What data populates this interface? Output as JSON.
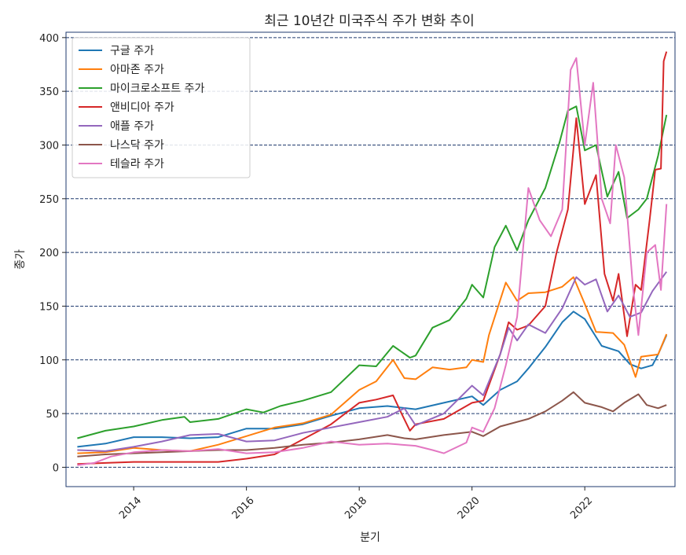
{
  "chart_data": {
    "type": "line",
    "title": "최근 10년간 미국주식 주가 변화 추이",
    "xlabel": "분기",
    "ylabel": "종가",
    "xlim": [
      2012.8,
      2023.6
    ],
    "ylim": [
      -18,
      405
    ],
    "x_ticks": [
      2014,
      2016,
      2018,
      2020,
      2022
    ],
    "x_tick_labels": [
      "2014",
      "2016",
      "2018",
      "2020",
      "2022"
    ],
    "y_ticks": [
      0,
      50,
      100,
      150,
      200,
      250,
      300,
      350,
      400
    ],
    "y_tick_labels": [
      "0",
      "50",
      "100",
      "150",
      "200",
      "250",
      "300",
      "350",
      "400"
    ],
    "grid": "horizontal dashed",
    "legend_position": "top-left",
    "series": [
      {
        "name": "구글 주가",
        "color": "#1f77b4",
        "points": [
          [
            2013.0,
            19
          ],
          [
            2013.5,
            22
          ],
          [
            2014.0,
            28
          ],
          [
            2014.5,
            28
          ],
          [
            2015.0,
            27
          ],
          [
            2015.5,
            28
          ],
          [
            2016.0,
            36
          ],
          [
            2016.5,
            36
          ],
          [
            2017.0,
            40
          ],
          [
            2017.5,
            48
          ],
          [
            2018.0,
            55
          ],
          [
            2018.5,
            57
          ],
          [
            2019.0,
            54
          ],
          [
            2019.5,
            60
          ],
          [
            2020.0,
            66
          ],
          [
            2020.2,
            58
          ],
          [
            2020.5,
            72
          ],
          [
            2020.8,
            80
          ],
          [
            2021.0,
            92
          ],
          [
            2021.3,
            112
          ],
          [
            2021.6,
            135
          ],
          [
            2021.8,
            145
          ],
          [
            2022.0,
            138
          ],
          [
            2022.3,
            113
          ],
          [
            2022.6,
            108
          ],
          [
            2022.8,
            96
          ],
          [
            2023.0,
            92
          ],
          [
            2023.2,
            95
          ],
          [
            2023.3,
            105
          ],
          [
            2023.45,
            123
          ]
        ]
      },
      {
        "name": "아마존 주가",
        "color": "#ff7f0e",
        "points": [
          [
            2013.0,
            13
          ],
          [
            2013.5,
            14
          ],
          [
            2014.0,
            18
          ],
          [
            2014.5,
            16
          ],
          [
            2015.0,
            15
          ],
          [
            2015.5,
            21
          ],
          [
            2016.0,
            29
          ],
          [
            2016.5,
            37
          ],
          [
            2017.0,
            41
          ],
          [
            2017.5,
            49
          ],
          [
            2018.0,
            72
          ],
          [
            2018.3,
            80
          ],
          [
            2018.6,
            100
          ],
          [
            2018.8,
            83
          ],
          [
            2019.0,
            82
          ],
          [
            2019.3,
            93
          ],
          [
            2019.6,
            91
          ],
          [
            2019.9,
            93
          ],
          [
            2020.0,
            100
          ],
          [
            2020.2,
            98
          ],
          [
            2020.3,
            123
          ],
          [
            2020.6,
            172
          ],
          [
            2020.8,
            155
          ],
          [
            2021.0,
            162
          ],
          [
            2021.3,
            163
          ],
          [
            2021.6,
            168
          ],
          [
            2021.8,
            177
          ],
          [
            2022.0,
            152
          ],
          [
            2022.2,
            126
          ],
          [
            2022.5,
            125
          ],
          [
            2022.7,
            114
          ],
          [
            2022.9,
            84
          ],
          [
            2023.0,
            103
          ],
          [
            2023.3,
            105
          ],
          [
            2023.45,
            124
          ]
        ]
      },
      {
        "name": "마이크로소프트 주가",
        "color": "#2ca02c",
        "points": [
          [
            2013.0,
            27
          ],
          [
            2013.5,
            34
          ],
          [
            2014.0,
            38
          ],
          [
            2014.5,
            44
          ],
          [
            2014.9,
            47
          ],
          [
            2015.0,
            42
          ],
          [
            2015.5,
            45
          ],
          [
            2016.0,
            54
          ],
          [
            2016.3,
            51
          ],
          [
            2016.6,
            57
          ],
          [
            2017.0,
            62
          ],
          [
            2017.5,
            70
          ],
          [
            2018.0,
            95
          ],
          [
            2018.3,
            94
          ],
          [
            2018.6,
            113
          ],
          [
            2018.9,
            102
          ],
          [
            2019.0,
            104
          ],
          [
            2019.3,
            130
          ],
          [
            2019.6,
            137
          ],
          [
            2019.9,
            157
          ],
          [
            2020.0,
            170
          ],
          [
            2020.2,
            158
          ],
          [
            2020.4,
            205
          ],
          [
            2020.6,
            225
          ],
          [
            2020.8,
            202
          ],
          [
            2021.0,
            230
          ],
          [
            2021.3,
            260
          ],
          [
            2021.55,
            302
          ],
          [
            2021.7,
            332
          ],
          [
            2021.85,
            336
          ],
          [
            2022.0,
            295
          ],
          [
            2022.2,
            300
          ],
          [
            2022.4,
            252
          ],
          [
            2022.6,
            275
          ],
          [
            2022.75,
            232
          ],
          [
            2022.95,
            240
          ],
          [
            2023.1,
            250
          ],
          [
            2023.3,
            290
          ],
          [
            2023.45,
            328
          ]
        ]
      },
      {
        "name": "앤비디아 주가",
        "color": "#d62728",
        "points": [
          [
            2013.0,
            3
          ],
          [
            2013.5,
            4
          ],
          [
            2014.0,
            5
          ],
          [
            2014.5,
            5
          ],
          [
            2015.0,
            5
          ],
          [
            2015.5,
            5
          ],
          [
            2016.0,
            8
          ],
          [
            2016.5,
            12
          ],
          [
            2017.0,
            26
          ],
          [
            2017.5,
            40
          ],
          [
            2018.0,
            60
          ],
          [
            2018.3,
            63
          ],
          [
            2018.6,
            67
          ],
          [
            2018.75,
            50
          ],
          [
            2018.9,
            34
          ],
          [
            2019.0,
            40
          ],
          [
            2019.5,
            45
          ],
          [
            2020.0,
            60
          ],
          [
            2020.2,
            62
          ],
          [
            2020.5,
            105
          ],
          [
            2020.65,
            135
          ],
          [
            2020.8,
            128
          ],
          [
            2021.0,
            132
          ],
          [
            2021.3,
            150
          ],
          [
            2021.5,
            200
          ],
          [
            2021.7,
            240
          ],
          [
            2021.85,
            325
          ],
          [
            2022.0,
            245
          ],
          [
            2022.2,
            272
          ],
          [
            2022.35,
            180
          ],
          [
            2022.5,
            155
          ],
          [
            2022.6,
            180
          ],
          [
            2022.75,
            122
          ],
          [
            2022.9,
            170
          ],
          [
            2023.0,
            165
          ],
          [
            2023.15,
            230
          ],
          [
            2023.25,
            277
          ],
          [
            2023.35,
            278
          ],
          [
            2023.4,
            378
          ],
          [
            2023.45,
            387
          ]
        ]
      },
      {
        "name": "애플 주가",
        "color": "#9467bd",
        "points": [
          [
            2013.0,
            16
          ],
          [
            2013.5,
            15
          ],
          [
            2014.0,
            19
          ],
          [
            2014.5,
            24
          ],
          [
            2015.0,
            30
          ],
          [
            2015.5,
            31
          ],
          [
            2016.0,
            24
          ],
          [
            2016.5,
            25
          ],
          [
            2017.0,
            32
          ],
          [
            2017.5,
            37
          ],
          [
            2018.0,
            42
          ],
          [
            2018.5,
            47
          ],
          [
            2018.8,
            55
          ],
          [
            2019.0,
            39
          ],
          [
            2019.5,
            50
          ],
          [
            2020.0,
            76
          ],
          [
            2020.2,
            67
          ],
          [
            2020.5,
            105
          ],
          [
            2020.65,
            130
          ],
          [
            2020.8,
            118
          ],
          [
            2021.0,
            133
          ],
          [
            2021.3,
            125
          ],
          [
            2021.6,
            148
          ],
          [
            2021.85,
            177
          ],
          [
            2022.0,
            170
          ],
          [
            2022.2,
            175
          ],
          [
            2022.4,
            145
          ],
          [
            2022.6,
            160
          ],
          [
            2022.8,
            140
          ],
          [
            2023.0,
            144
          ],
          [
            2023.2,
            164
          ],
          [
            2023.45,
            182
          ]
        ]
      },
      {
        "name": "나스닥 주가",
        "color": "#8c564b",
        "points": [
          [
            2013.0,
            10
          ],
          [
            2013.5,
            12
          ],
          [
            2014.0,
            13
          ],
          [
            2014.5,
            14
          ],
          [
            2015.0,
            15
          ],
          [
            2015.5,
            16
          ],
          [
            2016.0,
            16
          ],
          [
            2016.5,
            18
          ],
          [
            2017.0,
            21
          ],
          [
            2017.5,
            23
          ],
          [
            2018.0,
            26
          ],
          [
            2018.5,
            30
          ],
          [
            2018.8,
            27
          ],
          [
            2019.0,
            26
          ],
          [
            2019.5,
            30
          ],
          [
            2020.0,
            33
          ],
          [
            2020.2,
            29
          ],
          [
            2020.5,
            38
          ],
          [
            2021.0,
            45
          ],
          [
            2021.3,
            52
          ],
          [
            2021.6,
            62
          ],
          [
            2021.8,
            70
          ],
          [
            2022.0,
            60
          ],
          [
            2022.3,
            56
          ],
          [
            2022.5,
            52
          ],
          [
            2022.7,
            60
          ],
          [
            2022.95,
            68
          ],
          [
            2023.1,
            58
          ],
          [
            2023.3,
            55
          ],
          [
            2023.45,
            58
          ]
        ]
      },
      {
        "name": "테슬라 주가",
        "color": "#e377c2",
        "points": [
          [
            2013.0,
            2
          ],
          [
            2013.3,
            4
          ],
          [
            2013.6,
            10
          ],
          [
            2014.0,
            14
          ],
          [
            2014.5,
            16
          ],
          [
            2015.0,
            15
          ],
          [
            2015.5,
            17
          ],
          [
            2016.0,
            13
          ],
          [
            2016.5,
            14
          ],
          [
            2017.0,
            18
          ],
          [
            2017.5,
            24
          ],
          [
            2018.0,
            21
          ],
          [
            2018.5,
            22
          ],
          [
            2019.0,
            20
          ],
          [
            2019.3,
            16
          ],
          [
            2019.5,
            13
          ],
          [
            2019.9,
            23
          ],
          [
            2020.0,
            37
          ],
          [
            2020.2,
            33
          ],
          [
            2020.4,
            55
          ],
          [
            2020.6,
            95
          ],
          [
            2020.8,
            140
          ],
          [
            2021.0,
            260
          ],
          [
            2021.2,
            230
          ],
          [
            2021.4,
            215
          ],
          [
            2021.6,
            240
          ],
          [
            2021.75,
            370
          ],
          [
            2021.85,
            381
          ],
          [
            2022.0,
            300
          ],
          [
            2022.15,
            358
          ],
          [
            2022.3,
            250
          ],
          [
            2022.45,
            227
          ],
          [
            2022.55,
            300
          ],
          [
            2022.7,
            270
          ],
          [
            2022.85,
            170
          ],
          [
            2022.95,
            123
          ],
          [
            2023.1,
            200
          ],
          [
            2023.25,
            207
          ],
          [
            2023.35,
            165
          ],
          [
            2023.45,
            245
          ]
        ]
      }
    ]
  }
}
